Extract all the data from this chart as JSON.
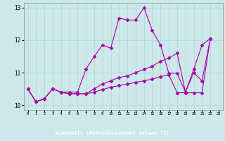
{
  "xlabel": "Windchill (Refroidissement éolien,°C)",
  "xlim": [
    -0.5,
    23.5
  ],
  "ylim": [
    9.85,
    13.15
  ],
  "yticks": [
    10,
    11,
    12,
    13
  ],
  "xticks": [
    0,
    1,
    2,
    3,
    4,
    5,
    6,
    7,
    8,
    9,
    10,
    11,
    12,
    13,
    14,
    15,
    16,
    17,
    18,
    19,
    20,
    21,
    22,
    23
  ],
  "bg_color": "#cce8e8",
  "bottom_bar_color": "#5555aa",
  "line_color": "#aa00aa",
  "lines": [
    {
      "x": [
        0,
        1,
        2,
        3,
        4,
        5,
        6,
        7,
        8,
        9,
        10,
        11,
        12,
        13,
        14,
        15,
        16,
        17,
        18,
        19,
        20,
        21,
        22
      ],
      "y": [
        10.5,
        10.1,
        10.2,
        10.5,
        10.4,
        10.4,
        10.4,
        11.1,
        11.5,
        11.85,
        11.75,
        12.68,
        12.62,
        12.62,
        13.0,
        12.3,
        11.85,
        10.98,
        10.98,
        10.4,
        11.0,
        10.75,
        12.05
      ]
    },
    {
      "x": [
        0,
        1,
        2,
        3,
        4,
        5,
        6,
        7,
        8,
        9,
        10,
        11,
        12,
        13,
        14,
        15,
        16,
        17,
        18,
        19,
        20,
        21,
        22
      ],
      "y": [
        10.5,
        10.1,
        10.2,
        10.5,
        10.4,
        10.35,
        10.35,
        10.35,
        10.5,
        10.65,
        10.75,
        10.85,
        10.9,
        11.0,
        11.1,
        11.2,
        11.35,
        11.45,
        11.6,
        10.4,
        11.1,
        11.85,
        12.05
      ]
    },
    {
      "x": [
        0,
        1,
        2,
        3,
        4,
        5,
        6,
        7,
        8,
        9,
        10,
        11,
        12,
        13,
        14,
        15,
        16,
        17,
        18,
        19,
        20,
        21,
        22
      ],
      "y": [
        10.5,
        10.1,
        10.2,
        10.5,
        10.4,
        10.35,
        10.35,
        10.35,
        10.4,
        10.48,
        10.55,
        10.6,
        10.65,
        10.7,
        10.75,
        10.8,
        10.88,
        10.93,
        10.38,
        10.38,
        10.38,
        10.38,
        12.05
      ]
    }
  ]
}
